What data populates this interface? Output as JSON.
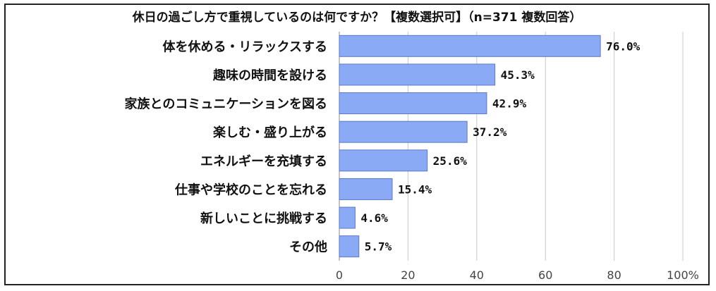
{
  "chart_data": {
    "type": "bar",
    "orientation": "horizontal",
    "title": "休日の過ごし方で重視しているのは何ですか？【複数選択可】（n=371  複数回答）",
    "categories": [
      "体を休める・リラックスする",
      "趣味の時間を設ける",
      "家族とのコミュニケーションを図る",
      "楽しむ・盛り上がる",
      "エネルギーを充填する",
      "仕事や学校のことを忘れる",
      "新しいことに挑戦する",
      "その他"
    ],
    "values": [
      76.0,
      45.3,
      42.9,
      37.2,
      25.6,
      15.4,
      4.6,
      5.7
    ],
    "value_labels": [
      "76.0%",
      "45.3%",
      "42.9%",
      "37.2%",
      "25.6%",
      "15.4%",
      "4.6%",
      "5.7%"
    ],
    "xlim": [
      0,
      100
    ],
    "x_ticks": [
      "0",
      "20",
      "40",
      "60",
      "80",
      "100%"
    ],
    "grid": true,
    "bar_color": "#8AAAF5",
    "bar_edge_color": "#5D78C8"
  }
}
